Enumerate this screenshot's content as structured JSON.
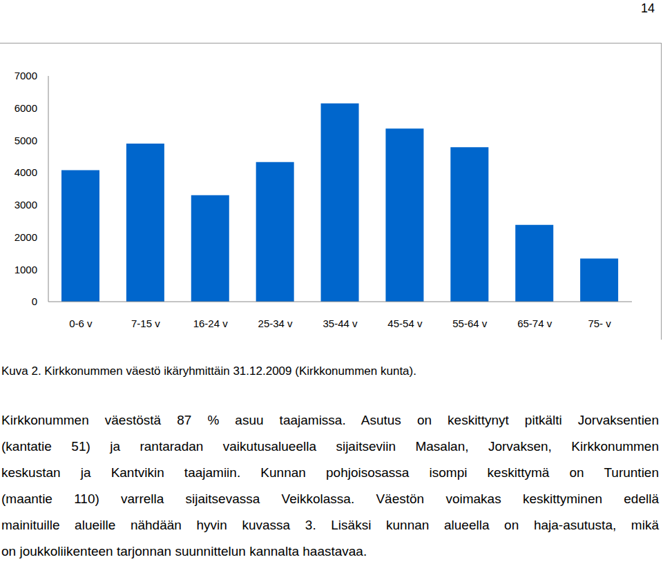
{
  "page_number": "14",
  "chart_data": {
    "type": "bar",
    "categories": [
      "0-6 v",
      "7-15 v",
      "16-24 v",
      "25-34 v",
      "35-44 v",
      "45-54 v",
      "55-64 v",
      "65-74 v",
      "75- v"
    ],
    "values": [
      4080,
      4900,
      3300,
      4330,
      6150,
      5370,
      4790,
      2380,
      1340
    ],
    "color": "#0066cc",
    "ylim": [
      0,
      7000
    ],
    "yticks": [
      0,
      1000,
      2000,
      3000,
      4000,
      5000,
      6000,
      7000
    ],
    "grid": false
  },
  "caption": "Kuva 2. Kirkkonummen väestö ikäryhmittäin 31.12.2009 (Kirkkonummen kunta).",
  "paragraph": [
    "Kirkkonummen väestöstä 87 % asuu taajamissa. Asutus on keskittynyt pitkälti Jorvaksentien",
    "(kantatie 51) ja rantaradan vaikutusalueella sijaitseviin Masalan, Jorvaksen, Kirkkonummen",
    "keskustan ja Kantvikin taajamiin. Kunnan pohjoisosassa isompi keskittymä on Turuntien",
    "(maantie 110) varrella sijaitsevassa Veikkolassa. Väestön voimakas keskittyminen edellä",
    "mainituille alueille nähdään hyvin kuvassa 3. Lisäksi kunnan alueella on haja-asutusta, mikä",
    "on joukkoliikenteen tarjonnan suunnittelun kannalta haastavaa."
  ]
}
